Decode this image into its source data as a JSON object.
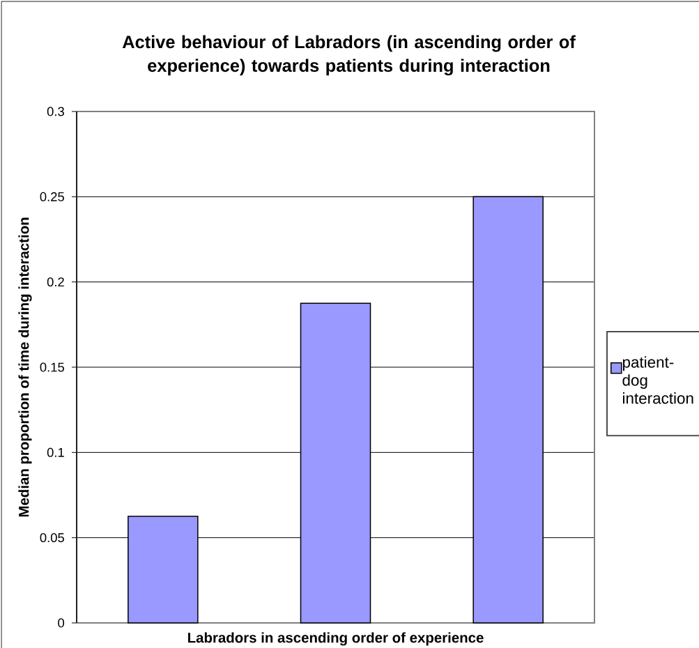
{
  "chart_data": {
    "type": "bar",
    "title": "Active behaviour of Labradors (in ascending order of experience) towards patients during interaction",
    "xlabel": "Labradors in ascending order of experience",
    "ylabel": "Median proportion of time during interaction",
    "categories": [
      null,
      null,
      null
    ],
    "series": [
      {
        "name": "patient-dog interaction",
        "color": "#9999ff",
        "values": [
          0.0625,
          0.1875,
          0.25
        ]
      }
    ],
    "ylim": [
      0,
      0.3
    ],
    "yticks": [
      0,
      0.05,
      0.1,
      0.15,
      0.2,
      0.25,
      0.3
    ],
    "grid": "y",
    "legend": "right",
    "tick_labels": "y"
  }
}
